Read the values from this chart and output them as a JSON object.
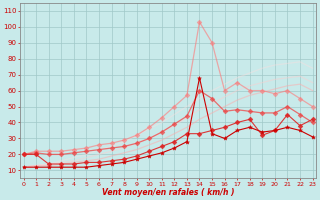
{
  "title": "",
  "xlabel": "Vent moyen/en rafales ( km/h )",
  "ylabel": "",
  "bg_color": "#c8eaea",
  "grid_color": "#a0c8c8",
  "x": [
    0,
    1,
    2,
    3,
    4,
    5,
    6,
    7,
    8,
    9,
    10,
    11,
    12,
    13,
    14,
    15,
    16,
    17,
    18,
    19,
    20,
    21,
    22,
    23
  ],
  "yticks": [
    10,
    20,
    30,
    40,
    50,
    60,
    70,
    80,
    90,
    100,
    110
  ],
  "ylim": [
    5,
    115
  ],
  "xlim": [
    -0.3,
    23.3
  ],
  "lines": [
    {
      "color": "#cc0000",
      "alpha": 1.0,
      "linewidth": 0.8,
      "marker": "*",
      "markersize": 3,
      "y": [
        12,
        12,
        12,
        12,
        12,
        12,
        13,
        14,
        15,
        17,
        19,
        21,
        24,
        28,
        68,
        33,
        30,
        35,
        37,
        34,
        35,
        37,
        35,
        31
      ]
    },
    {
      "color": "#dd2222",
      "alpha": 0.9,
      "linewidth": 0.8,
      "marker": "D",
      "markersize": 2.5,
      "y": [
        20,
        20,
        14,
        14,
        14,
        15,
        15,
        16,
        17,
        19,
        22,
        25,
        28,
        33,
        33,
        35,
        37,
        40,
        42,
        32,
        35,
        45,
        38,
        42
      ]
    },
    {
      "color": "#ee4444",
      "alpha": 0.75,
      "linewidth": 0.9,
      "marker": "D",
      "markersize": 2.5,
      "y": [
        20,
        21,
        20,
        20,
        21,
        22,
        23,
        24,
        25,
        27,
        30,
        34,
        39,
        44,
        60,
        55,
        47,
        48,
        47,
        46,
        46,
        50,
        45,
        40
      ]
    },
    {
      "color": "#ff7777",
      "alpha": 0.6,
      "linewidth": 0.9,
      "marker": "D",
      "markersize": 2.5,
      "y": [
        20,
        22,
        22,
        22,
        23,
        24,
        26,
        27,
        29,
        32,
        37,
        43,
        50,
        57,
        103,
        90,
        60,
        65,
        60,
        60,
        58,
        60,
        55,
        50
      ]
    },
    {
      "color": "#ffaaaa",
      "alpha": 0.5,
      "linewidth": 0.9,
      "marker": null,
      "markersize": 0,
      "y": [
        12,
        13,
        13,
        14,
        15,
        16,
        17,
        19,
        21,
        23,
        26,
        29,
        33,
        37,
        42,
        46,
        50,
        54,
        57,
        59,
        61,
        63,
        64,
        60
      ]
    },
    {
      "color": "#ffcccc",
      "alpha": 0.45,
      "linewidth": 0.9,
      "marker": null,
      "markersize": 0,
      "y": [
        12,
        13,
        14,
        15,
        16,
        18,
        20,
        22,
        24,
        27,
        30,
        34,
        38,
        43,
        48,
        52,
        56,
        60,
        63,
        65,
        67,
        68,
        69,
        65
      ]
    },
    {
      "color": "#ffdddd",
      "alpha": 0.4,
      "linewidth": 0.9,
      "marker": null,
      "markersize": 0,
      "y": [
        12,
        13,
        14,
        16,
        18,
        20,
        23,
        25,
        28,
        32,
        36,
        40,
        45,
        50,
        55,
        60,
        64,
        68,
        71,
        74,
        76,
        77,
        78,
        74
      ]
    }
  ],
  "xtick_labels": [
    "0",
    "1",
    "2",
    "3",
    "4",
    "5",
    "6",
    "7",
    "8",
    "9",
    "10",
    "11",
    "12",
    "13",
    "14",
    "15",
    "16",
    "17",
    "18",
    "19",
    "20",
    "21",
    "22",
    "23"
  ],
  "xlabel_color": "#cc0000",
  "tick_color": "#cc0000",
  "axis_color": "#888888"
}
